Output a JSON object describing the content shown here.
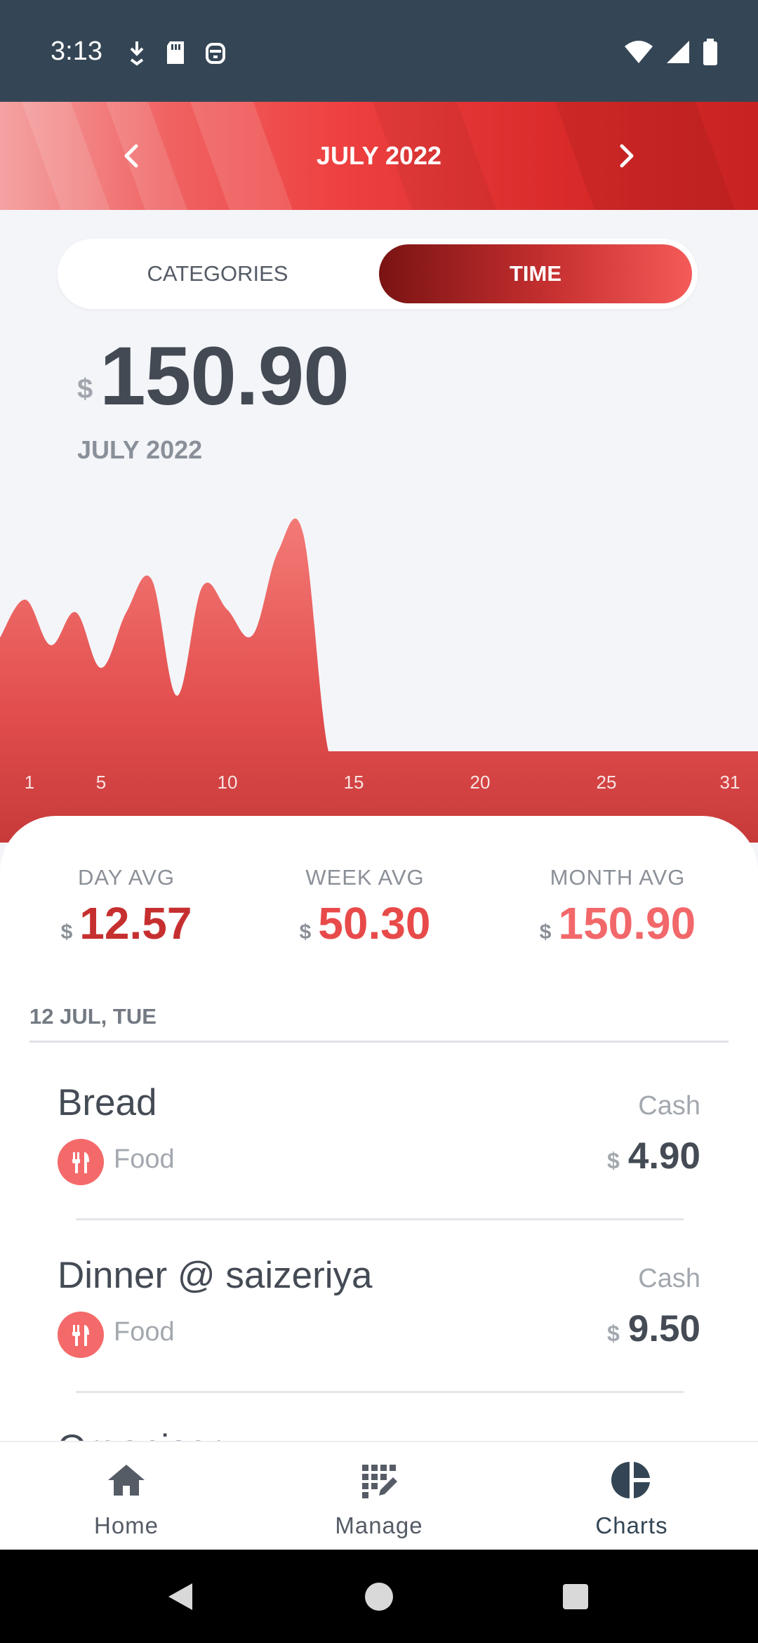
{
  "status_bar": {
    "time": "3:13"
  },
  "header": {
    "month_title": "JULY 2022"
  },
  "tabs": [
    {
      "label": "CATEGORIES",
      "active": false
    },
    {
      "label": "TIME",
      "active": true
    }
  ],
  "summary": {
    "currency": "$",
    "total": "150.90",
    "period": "JULY 2022"
  },
  "chart_data": {
    "type": "area",
    "title": "",
    "xlabel": "",
    "ylabel": "",
    "x_ticks": [
      "1",
      "5",
      "10",
      "15",
      "20",
      "25",
      "31"
    ],
    "x": [
      1,
      2,
      3,
      4,
      5,
      6,
      7,
      8,
      9,
      10,
      11,
      12,
      13,
      14,
      15,
      16,
      17,
      18,
      19,
      20,
      21,
      22,
      23,
      24,
      25,
      26,
      27,
      28,
      29,
      30,
      31
    ],
    "values": [
      0.45,
      0.6,
      0.42,
      0.55,
      0.33,
      0.55,
      0.68,
      0.22,
      0.65,
      0.56,
      0.46,
      0.79,
      0.86,
      0,
      0,
      0,
      0,
      0,
      0,
      0,
      0,
      0,
      0,
      0,
      0,
      0,
      0,
      0,
      0,
      0,
      0
    ],
    "fill_color": "#e84f4f",
    "grid": false,
    "legend": "none"
  },
  "averages": [
    {
      "label": "DAY AVG",
      "currency": "$",
      "value": "12.57",
      "color": "#c62f2f"
    },
    {
      "label": "WEEK AVG",
      "currency": "$",
      "value": "50.30",
      "color": "#e84a4a"
    },
    {
      "label": "MONTH AVG",
      "currency": "$",
      "value": "150.90",
      "color": "#f2686a"
    }
  ],
  "list": {
    "date_header": "12 JUL, TUE",
    "transactions": [
      {
        "title": "Bread",
        "method": "Cash",
        "category": "Food",
        "category_icon": "fork-knife-icon",
        "currency": "$",
        "amount": "4.90"
      },
      {
        "title": "Dinner @ saizeriya",
        "method": "Cash",
        "category": "Food",
        "category_icon": "fork-knife-icon",
        "currency": "$",
        "amount": "9.50"
      },
      {
        "title": "Organiser",
        "method": "",
        "category": "",
        "category_icon": "",
        "currency": "",
        "amount": ""
      }
    ]
  },
  "bottom_nav": [
    {
      "label": "Home",
      "icon": "home-icon",
      "active": false
    },
    {
      "label": "Manage",
      "icon": "manage-icon",
      "active": false
    },
    {
      "label": "Charts",
      "icon": "pie-chart-icon",
      "active": true
    }
  ]
}
